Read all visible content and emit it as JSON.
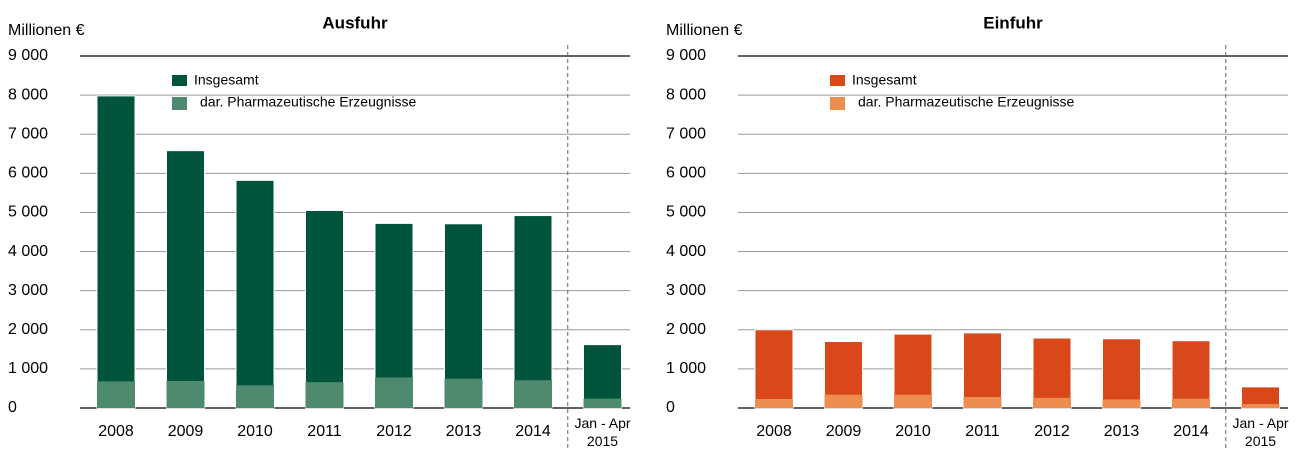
{
  "chart_data": [
    {
      "type": "bar",
      "title": "Ausfuhr",
      "y_label": "Millionen €",
      "categories": [
        "2008",
        "2009",
        "2010",
        "2011",
        "2012",
        "2013",
        "2014",
        "Jan - Apr 2015"
      ],
      "series": [
        {
          "name": "Insgesamt",
          "color": "#00543c",
          "values": [
            7980,
            6580,
            5820,
            5050,
            4720,
            4710,
            4920,
            1620
          ]
        },
        {
          "name": "dar. Pharmazeutische Erzeugnisse",
          "color": "#4e8b6e",
          "values": [
            680,
            690,
            580,
            660,
            780,
            750,
            710,
            240
          ]
        }
      ],
      "ylim": [
        0,
        9000
      ],
      "yticks": [
        0,
        {
          "value": 1000,
          "label": "1 000"
        },
        {
          "value": 2000,
          "label": "2 000"
        },
        {
          "value": 3000,
          "label": "3 000"
        },
        {
          "value": 4000,
          "label": "4 000"
        },
        {
          "value": 5000,
          "label": "5 000"
        },
        {
          "value": 6000,
          "label": "6 000"
        },
        {
          "value": 7000,
          "label": "7 000"
        },
        {
          "value": 8000,
          "label": "8 000"
        },
        {
          "value": 9000,
          "label": "9 000"
        }
      ],
      "grid": true
    },
    {
      "type": "bar",
      "title": "Einfuhr",
      "y_label": "Millionen €",
      "categories": [
        "2008",
        "2009",
        "2010",
        "2011",
        "2012",
        "2013",
        "2014",
        "Jan - Apr 2015"
      ],
      "series": [
        {
          "name": "Insgesamt",
          "color": "#d9481a",
          "values": [
            2000,
            1700,
            1890,
            1920,
            1790,
            1770,
            1720,
            540
          ]
        },
        {
          "name": "dar. Pharmazeutische Erzeugnisse",
          "color": "#ee8d50",
          "values": [
            230,
            340,
            340,
            280,
            260,
            220,
            240,
            100
          ]
        }
      ],
      "ylim": [
        0,
        9000
      ],
      "yticks": [
        0,
        {
          "value": 1000,
          "label": "1 000"
        },
        {
          "value": 2000,
          "label": "2 000"
        },
        {
          "value": 3000,
          "label": "3 000"
        },
        {
          "value": 4000,
          "label": "4 000"
        },
        {
          "value": 5000,
          "label": "5 000"
        },
        {
          "value": 6000,
          "label": "6 000"
        },
        {
          "value": 7000,
          "label": "7 000"
        },
        {
          "value": 8000,
          "label": "8 000"
        },
        {
          "value": 9000,
          "label": "9 000"
        }
      ],
      "grid": true
    }
  ]
}
